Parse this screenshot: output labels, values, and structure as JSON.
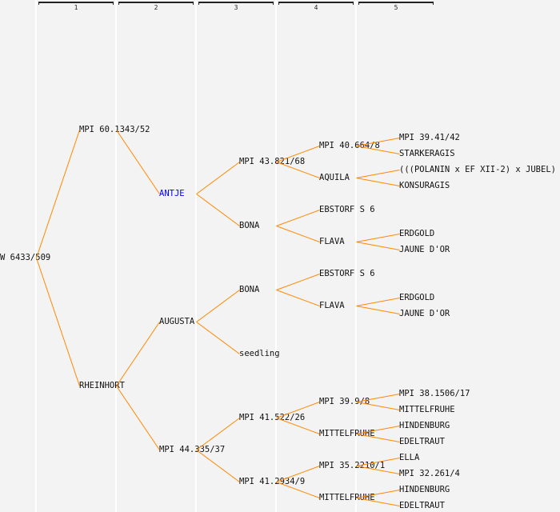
{
  "generation_headers": [
    "1",
    "2",
    "3",
    "4",
    "5"
  ],
  "colors": {
    "line": "#ff8800",
    "highlight": "#0000ff",
    "text": "#111111"
  },
  "tree": {
    "name": "W 6433/509",
    "parents": [
      {
        "name": "MPI 60.1343/52",
        "parents": [
          null,
          {
            "name": "ANTJE",
            "highlight": true,
            "parents": [
              {
                "name": "MPI 43.821/68",
                "parents": [
                  {
                    "name": "MPI 40.664/8",
                    "parents": [
                      {
                        "name": "MPI 39.41/42"
                      },
                      {
                        "name": "STARKERAGIS"
                      }
                    ]
                  },
                  {
                    "name": "AQUILA",
                    "parents": [
                      {
                        "name": "(((POLANIN x EF XII-2) x JUBEL) x"
                      },
                      {
                        "name": "KONSURAGIS"
                      }
                    ]
                  }
                ]
              },
              {
                "name": "BONA",
                "parents": [
                  {
                    "name": "EBSTORF S 6"
                  },
                  {
                    "name": "FLAVA",
                    "parents": [
                      {
                        "name": "ERDGOLD"
                      },
                      {
                        "name": "JAUNE D'OR"
                      }
                    ]
                  }
                ]
              }
            ]
          }
        ]
      },
      {
        "name": "RHEINHORT",
        "parents": [
          {
            "name": "AUGUSTA",
            "parents": [
              {
                "name": "BONA",
                "parents": [
                  {
                    "name": "EBSTORF S 6"
                  },
                  {
                    "name": "FLAVA",
                    "parents": [
                      {
                        "name": "ERDGOLD"
                      },
                      {
                        "name": "JAUNE D'OR"
                      }
                    ]
                  }
                ]
              },
              {
                "name": "seedling"
              }
            ]
          },
          {
            "name": "MPI 44.335/37",
            "parents": [
              {
                "name": "MPI 41.522/26",
                "parents": [
                  {
                    "name": "MPI 39.9/8",
                    "parents": [
                      {
                        "name": "MPI 38.1506/17"
                      },
                      {
                        "name": "MITTELFRUHE"
                      }
                    ]
                  },
                  {
                    "name": "MITTELFRUHE",
                    "parents": [
                      {
                        "name": "HINDENBURG"
                      },
                      {
                        "name": "EDELTRAUT"
                      }
                    ]
                  }
                ]
              },
              {
                "name": "MPI 41.2934/9",
                "parents": [
                  {
                    "name": "MPI 35.2210/1",
                    "parents": [
                      {
                        "name": "ELLA"
                      },
                      {
                        "name": "MPI 32.261/4"
                      }
                    ]
                  },
                  {
                    "name": "MITTELFRUHE",
                    "parents": [
                      {
                        "name": "HINDENBURG"
                      },
                      {
                        "name": "EDELTRAUT"
                      }
                    ]
                  }
                ]
              }
            ]
          }
        ]
      }
    ]
  }
}
